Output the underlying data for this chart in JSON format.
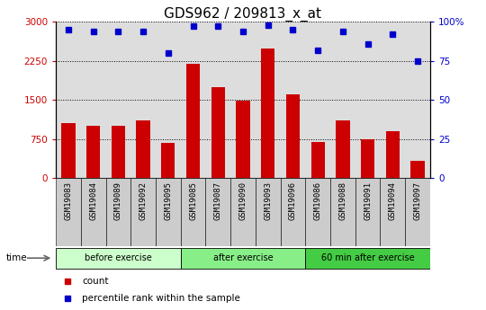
{
  "title": "GDS962 / 209813_x_at",
  "categories": [
    "GSM19083",
    "GSM19084",
    "GSM19089",
    "GSM19092",
    "GSM19095",
    "GSM19085",
    "GSM19087",
    "GSM19090",
    "GSM19093",
    "GSM19096",
    "GSM19086",
    "GSM19088",
    "GSM19091",
    "GSM19094",
    "GSM19097"
  ],
  "counts": [
    1050,
    1000,
    1000,
    1100,
    680,
    2200,
    1750,
    1480,
    2480,
    1600,
    700,
    1100,
    750,
    900,
    330
  ],
  "percentiles": [
    95,
    94,
    94,
    94,
    80,
    97,
    97,
    94,
    98,
    95,
    82,
    94,
    86,
    92,
    75
  ],
  "bar_color": "#cc0000",
  "dot_color": "#0000cc",
  "ylim_left": [
    0,
    3000
  ],
  "ylim_right": [
    0,
    100
  ],
  "yticks_left": [
    0,
    750,
    1500,
    2250,
    3000
  ],
  "yticks_right": [
    0,
    25,
    50,
    75,
    100
  ],
  "ytick_labels_left": [
    "0",
    "750",
    "1500",
    "2250",
    "3000"
  ],
  "ytick_labels_right": [
    "0",
    "25",
    "50",
    "75",
    "100%"
  ],
  "grid_color": "#000000",
  "bg_color": "#ffffff",
  "plot_bg_color": "#dddddd",
  "xtick_bg_color": "#cccccc",
  "group_colors": [
    "#ccffcc",
    "#88ee88",
    "#44cc44"
  ],
  "group_labels": [
    "before exercise",
    "after exercise",
    "60 min after exercise"
  ],
  "group_ranges": [
    [
      0,
      4
    ],
    [
      5,
      9
    ],
    [
      10,
      14
    ]
  ],
  "legend_count_label": "count",
  "legend_percentile_label": "percentile rank within the sample",
  "time_label": "time",
  "left_axis_color": "#cc0000",
  "right_axis_color": "#0000cc",
  "title_fontsize": 11
}
